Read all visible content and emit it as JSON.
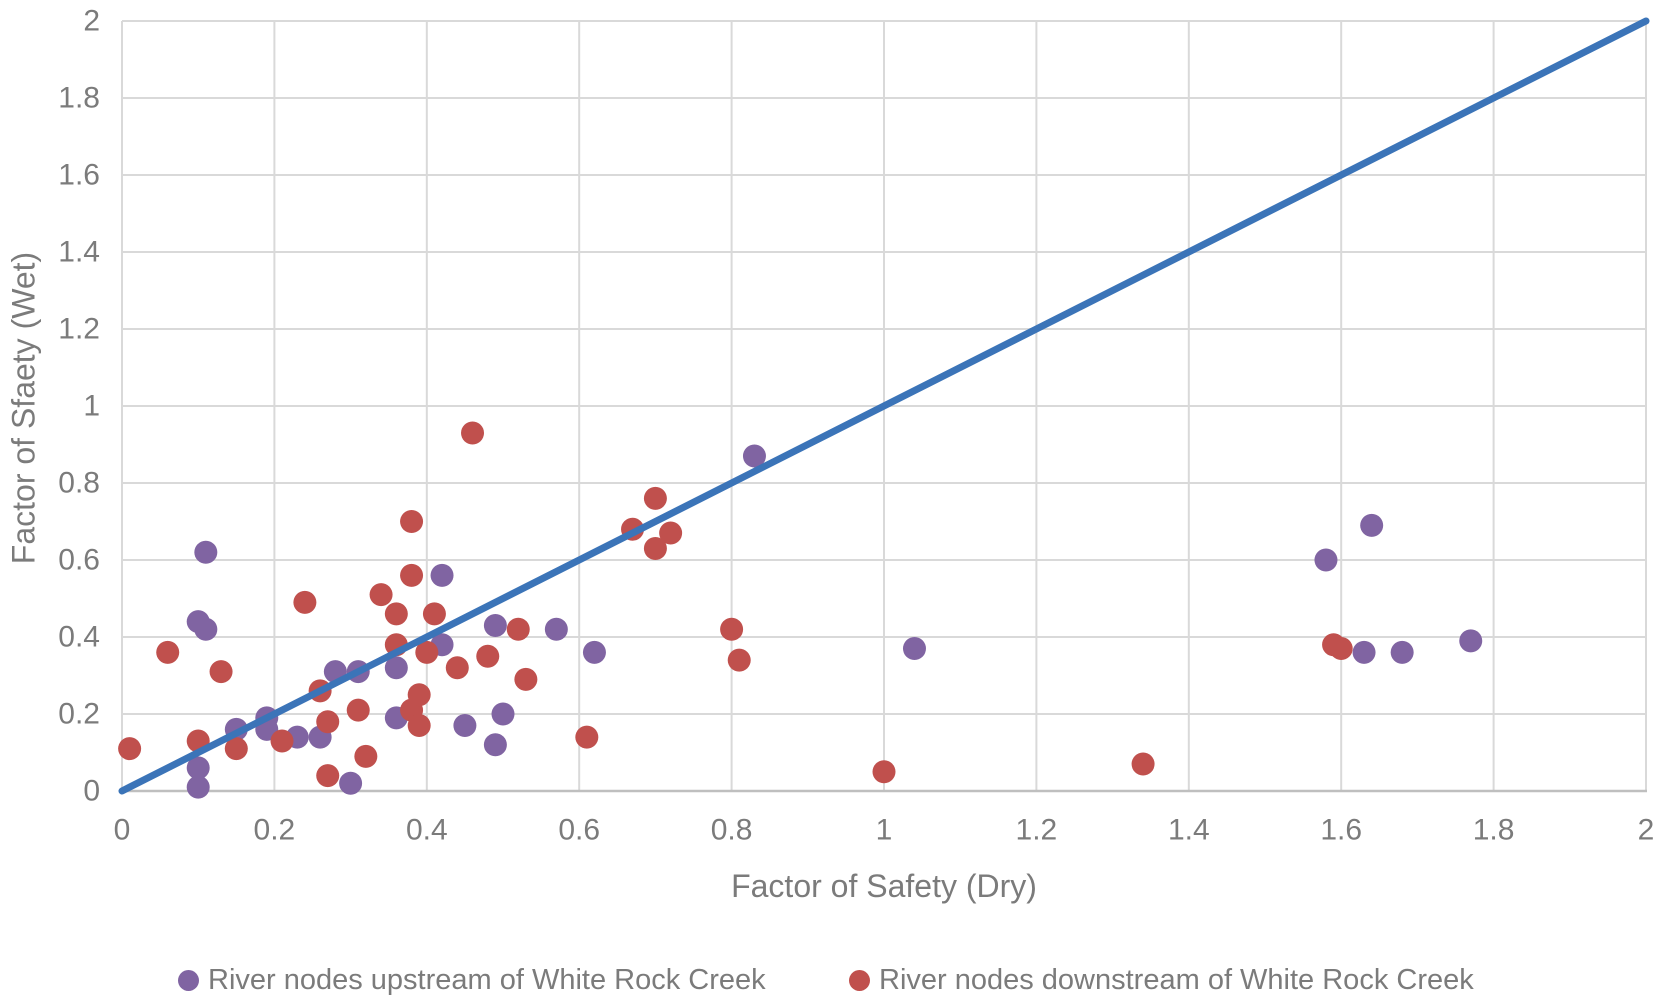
{
  "chart_data": {
    "type": "scatter",
    "title": "",
    "xlabel": "Factor of Safety (Dry)",
    "ylabel": "Factor of Sfaety (Wet)",
    "xlim": [
      0,
      2
    ],
    "ylim": [
      0,
      2
    ],
    "x_ticks": [
      "0",
      "0.2",
      "0.4",
      "0.6",
      "0.8",
      "1",
      "1.2",
      "1.4",
      "1.6",
      "1.8",
      "2"
    ],
    "y_ticks": [
      "0",
      "0.2",
      "0.4",
      "0.6",
      "0.8",
      "1",
      "1.2",
      "1.4",
      "1.6",
      "1.8",
      "2"
    ],
    "grid": true,
    "legend_position": "bottom",
    "series": [
      {
        "name": "River nodes upstream of White Rock Creek",
        "type": "scatter",
        "color": "#8064A2",
        "in_legend": true,
        "points": [
          [
            0.11,
            0.62
          ],
          [
            0.1,
            0.44
          ],
          [
            0.11,
            0.42
          ],
          [
            0.1,
            0.06
          ],
          [
            0.1,
            0.01
          ],
          [
            0.15,
            0.16
          ],
          [
            0.19,
            0.19
          ],
          [
            0.19,
            0.16
          ],
          [
            0.23,
            0.14
          ],
          [
            0.26,
            0.14
          ],
          [
            0.28,
            0.31
          ],
          [
            0.31,
            0.31
          ],
          [
            0.3,
            0.02
          ],
          [
            0.36,
            0.32
          ],
          [
            0.36,
            0.19
          ],
          [
            0.42,
            0.38
          ],
          [
            0.42,
            0.56
          ],
          [
            0.45,
            0.17
          ],
          [
            0.49,
            0.12
          ],
          [
            0.5,
            0.2
          ],
          [
            0.49,
            0.43
          ],
          [
            0.57,
            0.42
          ],
          [
            0.62,
            0.36
          ],
          [
            0.83,
            0.87
          ],
          [
            1.04,
            0.37
          ],
          [
            1.58,
            0.6
          ],
          [
            1.64,
            0.69
          ],
          [
            1.63,
            0.36
          ],
          [
            1.68,
            0.36
          ],
          [
            1.77,
            0.39
          ]
        ]
      },
      {
        "name": "River nodes downstream of White Rock Creek",
        "type": "scatter",
        "color": "#C0504D",
        "in_legend": true,
        "points": [
          [
            0.01,
            0.11
          ],
          [
            0.06,
            0.36
          ],
          [
            0.1,
            0.13
          ],
          [
            0.13,
            0.31
          ],
          [
            0.15,
            0.11
          ],
          [
            0.21,
            0.13
          ],
          [
            0.24,
            0.49
          ],
          [
            0.26,
            0.26
          ],
          [
            0.27,
            0.18
          ],
          [
            0.27,
            0.04
          ],
          [
            0.31,
            0.21
          ],
          [
            0.32,
            0.09
          ],
          [
            0.34,
            0.51
          ],
          [
            0.36,
            0.46
          ],
          [
            0.36,
            0.38
          ],
          [
            0.38,
            0.21
          ],
          [
            0.38,
            0.56
          ],
          [
            0.38,
            0.7
          ],
          [
            0.39,
            0.25
          ],
          [
            0.39,
            0.17
          ],
          [
            0.4,
            0.36
          ],
          [
            0.41,
            0.46
          ],
          [
            0.44,
            0.32
          ],
          [
            0.46,
            0.93
          ],
          [
            0.48,
            0.35
          ],
          [
            0.52,
            0.42
          ],
          [
            0.53,
            0.29
          ],
          [
            0.61,
            0.14
          ],
          [
            0.67,
            0.68
          ],
          [
            0.7,
            0.76
          ],
          [
            0.7,
            0.63
          ],
          [
            0.72,
            0.67
          ],
          [
            0.8,
            0.42
          ],
          [
            0.81,
            0.34
          ],
          [
            1.0,
            0.05
          ],
          [
            1.34,
            0.07
          ],
          [
            1.59,
            0.38
          ],
          [
            1.6,
            0.37
          ]
        ]
      },
      {
        "name": "1:1 reference line",
        "type": "line",
        "color": "#3B74B8",
        "in_legend": false,
        "points": [
          [
            0,
            0
          ],
          [
            2,
            2
          ]
        ]
      }
    ]
  },
  "axes": {
    "x_title": "Factor of Safety (Dry)",
    "y_title": "Factor of Sfaety (Wet)"
  },
  "legend": {
    "items": [
      {
        "label": "River nodes upstream of White Rock Creek",
        "color": "#8064A2"
      },
      {
        "label": "River nodes downstream of White Rock Creek",
        "color": "#C0504D"
      }
    ]
  },
  "colors": {
    "background": "#FFFFFF",
    "gridline": "#D9D9D9",
    "axis_line": "#BFBFBF",
    "tick_label": "#7B7B7B",
    "axis_title": "#7B7B7B",
    "legend_text": "#7B7B7B"
  }
}
